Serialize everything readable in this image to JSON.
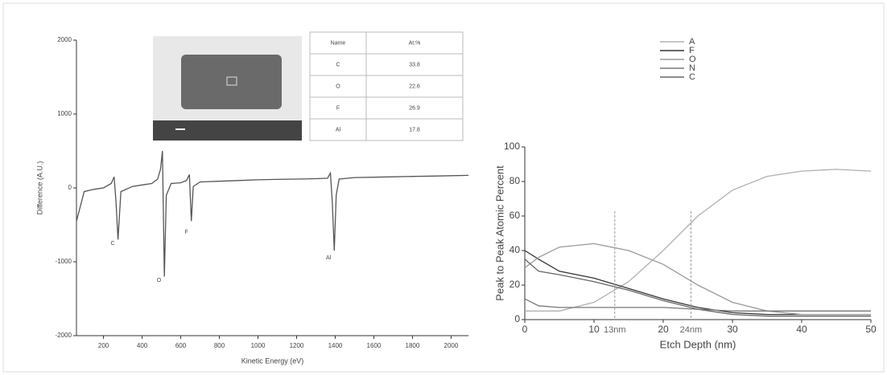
{
  "chart_data": [
    {
      "type": "line",
      "xlabel": "Kinetic Energy (eV)",
      "ylabel": "Difference (A.U.)",
      "x": [
        60,
        100,
        150,
        200,
        240,
        255,
        265,
        275,
        290,
        350,
        400,
        450,
        480,
        495,
        505,
        515,
        525,
        550,
        600,
        630,
        645,
        655,
        665,
        700,
        800,
        900,
        1000,
        1100,
        1200,
        1300,
        1360,
        1375,
        1385,
        1395,
        1405,
        1420,
        1500,
        1600,
        1700,
        1800,
        1900,
        2000,
        2090
      ],
      "values": [
        -450,
        -50,
        -20,
        0,
        60,
        150,
        -200,
        -700,
        -50,
        20,
        40,
        60,
        120,
        250,
        500,
        -1200,
        -100,
        60,
        70,
        100,
        180,
        -450,
        20,
        80,
        90,
        100,
        110,
        115,
        120,
        125,
        130,
        200,
        -200,
        -850,
        -100,
        120,
        140,
        145,
        150,
        155,
        160,
        165,
        170
      ],
      "color": "#555555",
      "xlim": [
        60,
        2090
      ],
      "xticks": [
        200,
        400,
        600,
        800,
        1000,
        1200,
        1400,
        1600,
        1800,
        2000
      ],
      "ylim": [
        -2000,
        2000
      ],
      "yticks": [
        -2000,
        -1000,
        0,
        1000,
        2000
      ],
      "annotations": [
        {
          "x": 275,
          "y": -750,
          "label": "C"
        },
        {
          "x": 515,
          "y": -1250,
          "label": "O"
        },
        {
          "x": 655,
          "y": -600,
          "label": "F"
        },
        {
          "x": 1395,
          "y": -950,
          "label": "Al"
        }
      ],
      "table": {
        "header": [
          "Name",
          "At.%"
        ],
        "rows": [
          [
            "C",
            "33.8"
          ],
          [
            "O",
            "22.6"
          ],
          [
            "F",
            "26.9"
          ],
          [
            "Al",
            "17.8"
          ]
        ]
      }
    },
    {
      "type": "line",
      "xlabel": "Etch Depth (nm)",
      "ylabel": "Peak to Peak Atomic Percent",
      "x": [
        0,
        2,
        5,
        10,
        15,
        20,
        25,
        30,
        35,
        40,
        45,
        50
      ],
      "series": [
        {
          "name": "A",
          "color": "#b0b0b0",
          "values": [
            5,
            5,
            5,
            10,
            22,
            40,
            60,
            75,
            83,
            86,
            87,
            86
          ]
        },
        {
          "name": "F",
          "color": "#333333",
          "values": [
            40,
            35,
            28,
            24,
            18,
            12,
            7,
            4,
            3,
            3,
            3,
            3
          ]
        },
        {
          "name": "O",
          "color": "#999999",
          "values": [
            30,
            36,
            42,
            44,
            40,
            32,
            20,
            10,
            5,
            3,
            3,
            3
          ]
        },
        {
          "name": "N",
          "color": "#777777",
          "values": [
            12,
            8,
            7,
            7,
            7,
            7,
            6,
            5,
            5,
            5,
            5,
            5
          ]
        },
        {
          "name": "C",
          "color": "#666666",
          "values": [
            35,
            28,
            26,
            22,
            17,
            11,
            6,
            3,
            2,
            2,
            2,
            2
          ]
        }
      ],
      "xlim": [
        0,
        50
      ],
      "xticks": [
        0,
        10,
        20,
        30,
        40,
        50
      ],
      "ylim": [
        0,
        100
      ],
      "yticks": [
        0,
        20,
        40,
        60,
        80,
        100
      ],
      "annotations": [
        {
          "x": 13,
          "label": "13nm"
        },
        {
          "x": 24,
          "label": "24nm"
        }
      ]
    }
  ]
}
